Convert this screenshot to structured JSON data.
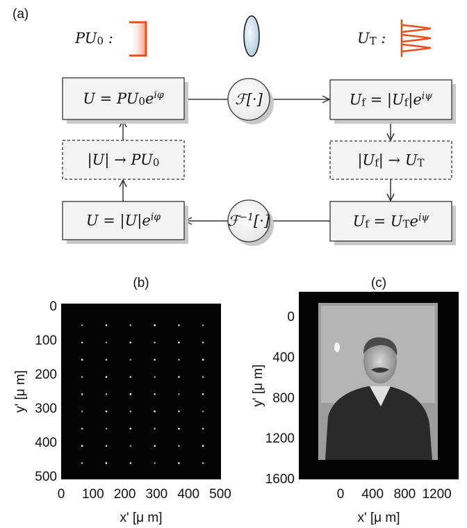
{
  "panel_a": {
    "label": "(a)",
    "source": [
      {
        "text": "PU"
      },
      {
        "sub": "0"
      },
      {
        "text": " :"
      }
    ],
    "target": [
      {
        "text": "U"
      },
      {
        "sub": "T"
      },
      {
        "text": " :"
      }
    ],
    "nodes": [
      [
        {
          "text": "U = PU"
        },
        {
          "sub": "0"
        },
        {
          "text": "e"
        },
        {
          "sup": "iφ"
        }
      ],
      [
        {
          "text": "ℱ[·]"
        }
      ],
      [
        {
          "text": "U"
        },
        {
          "sub": "f"
        },
        {
          "text": " = |U"
        },
        {
          "sub": "f"
        },
        {
          "text": "|e"
        },
        {
          "sup": "iψ"
        }
      ],
      [
        {
          "text": "|U| → PU"
        },
        {
          "sub": "0"
        }
      ],
      [
        {
          "text": "|U"
        },
        {
          "sub": "f"
        },
        {
          "text": "| → U"
        },
        {
          "sub": "T"
        }
      ],
      [
        {
          "text": "U = |U|e"
        },
        {
          "sup": "iφ"
        }
      ],
      [
        {
          "text": "ℱ"
        },
        {
          "sup": "−1"
        },
        {
          "text": "[·]"
        }
      ],
      [
        {
          "text": "U"
        },
        {
          "sub": "f"
        },
        {
          "text": " = U"
        },
        {
          "sub": "T"
        },
        {
          "text": "e"
        },
        {
          "sup": "iψ"
        }
      ]
    ]
  },
  "panel_b": {
    "label": "(b)",
    "xlabel": "x' [μ m]",
    "ylabel": "y' [μ m]",
    "xticks": [
      0,
      100,
      200,
      300,
      400,
      500
    ],
    "yticks": [
      0,
      100,
      200,
      300,
      400,
      500
    ]
  },
  "panel_c": {
    "label": "(c)",
    "xlabel": "x' [μ m]",
    "ylabel": "y' [μ m]",
    "xticks": [
      0,
      400,
      800,
      1200
    ],
    "yticks": [
      0,
      400,
      800,
      1200,
      1600
    ]
  }
}
